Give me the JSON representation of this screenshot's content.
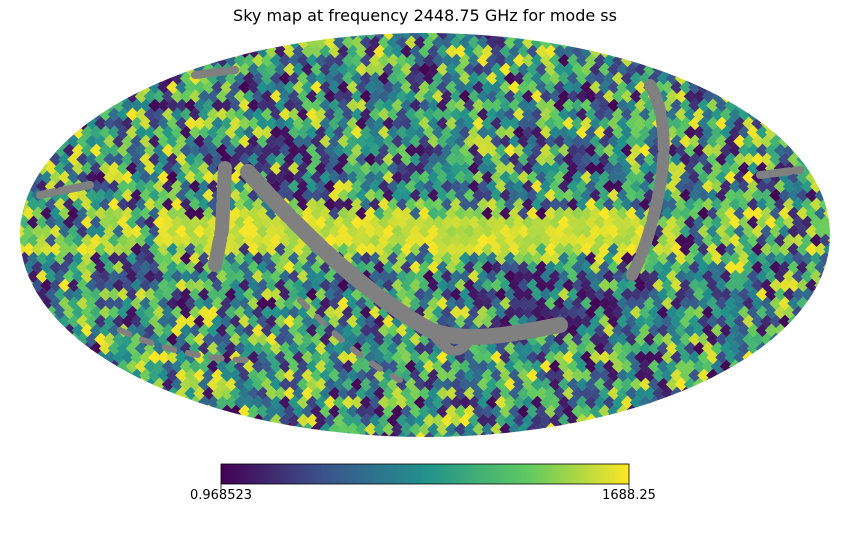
{
  "chart_data": {
    "type": "heatmap",
    "projection": "mollweide",
    "title": "Sky map at frequency 2448.75 GHz for mode ss",
    "colormap": "viridis",
    "colormap_stops": [
      "#440154",
      "#3b528b",
      "#21918c",
      "#5ec962",
      "#fde725"
    ],
    "masked_color": "#808080",
    "colorbar": {
      "min": 0.968523,
      "max": 1688.25,
      "tick_labels": [
        "0.968523",
        "1688.25"
      ],
      "orientation": "horizontal"
    },
    "features": [
      "bright galactic-plane band across the center (values near max)",
      "grey masked diagonal scan stripes crossing the map",
      "noisy pixelated background spanning full color range"
    ]
  }
}
